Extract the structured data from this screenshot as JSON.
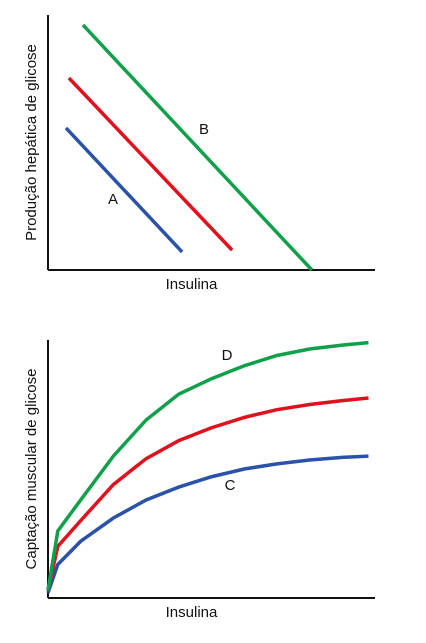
{
  "chart_data": [
    {
      "type": "line",
      "x_label": "Insulina",
      "y_label": "Produção hepática de glicose",
      "xlim": [
        0,
        100
      ],
      "ylim": [
        0,
        100
      ],
      "series": [
        {
          "name": "A",
          "color": "#2a52a8",
          "x": [
            5.5,
            41
          ],
          "values": [
            55.7,
            7.1
          ]
        },
        {
          "color": "#e0101c",
          "x": [
            6.4,
            56.3
          ],
          "values": [
            75.3,
            7.8
          ]
        },
        {
          "name": "B",
          "color": "#10a04a",
          "x": [
            10.7,
            80.7
          ],
          "values": [
            96.1,
            0
          ]
        }
      ]
    },
    {
      "type": "line",
      "x_label": "Insulina",
      "y_label": "Captação muscular de glicose",
      "xlim": [
        0,
        100
      ],
      "ylim": [
        0,
        100
      ],
      "series": [
        {
          "name": "C",
          "color": "#2a52a8",
          "x": [
            0,
            3,
            10,
            20,
            30,
            40,
            50,
            60,
            70,
            80,
            90,
            98
          ],
          "values": [
            2,
            13,
            22,
            31,
            38,
            43,
            47,
            50,
            52,
            53.5,
            54.5,
            55
          ]
        },
        {
          "color": "#e0101c",
          "x": [
            0,
            3,
            10,
            20,
            30,
            40,
            50,
            60,
            70,
            80,
            90,
            98
          ],
          "values": [
            3,
            20,
            30,
            44,
            54,
            61,
            66,
            70,
            73,
            75,
            76.5,
            77.5
          ]
        },
        {
          "name": "D",
          "color": "#10a04a",
          "x": [
            0,
            3,
            10,
            20,
            30,
            40,
            50,
            60,
            70,
            80,
            90,
            98
          ],
          "values": [
            3,
            26,
            38,
            55,
            69,
            79,
            85,
            90,
            94,
            96.5,
            98,
            99
          ]
        }
      ]
    }
  ]
}
